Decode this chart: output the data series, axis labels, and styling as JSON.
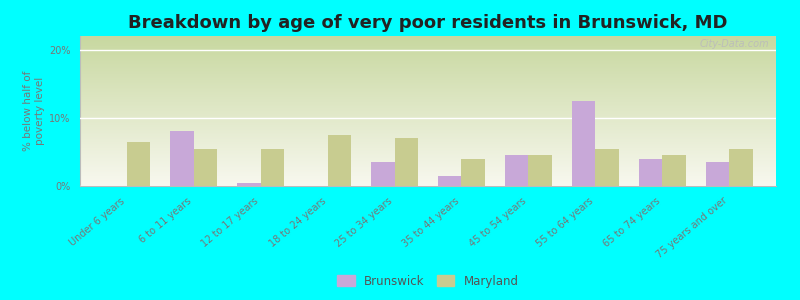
{
  "title": "Breakdown by age of very poor residents in Brunswick, MD",
  "ylabel": "% below half of\npoverty level",
  "categories": [
    "Under 6 years",
    "6 to 11 years",
    "12 to 17 years",
    "18 to 24 years",
    "25 to 34 years",
    "35 to 44 years",
    "45 to 54 years",
    "55 to 64 years",
    "65 to 74 years",
    "75 years and over"
  ],
  "brunswick": [
    0.0,
    8.0,
    0.5,
    0.0,
    3.5,
    1.5,
    4.5,
    12.5,
    4.0,
    3.5
  ],
  "maryland": [
    6.5,
    5.5,
    5.5,
    7.5,
    7.0,
    4.0,
    4.5,
    5.5,
    4.5,
    5.5
  ],
  "brunswick_color": "#c8a8d8",
  "maryland_color": "#c8cc90",
  "background_outer": "#00ffff",
  "background_plot_top": "#c8d8a0",
  "background_plot_bottom": "#f8f8ef",
  "bar_width": 0.35,
  "ylim": [
    0,
    22
  ],
  "yticks": [
    0,
    10,
    20
  ],
  "ytick_labels": [
    "0%",
    "10%",
    "20%"
  ],
  "title_fontsize": 13,
  "axis_label_fontsize": 7.5,
  "tick_fontsize": 7.0,
  "legend_fontsize": 8.5,
  "watermark": "City-Data.com"
}
